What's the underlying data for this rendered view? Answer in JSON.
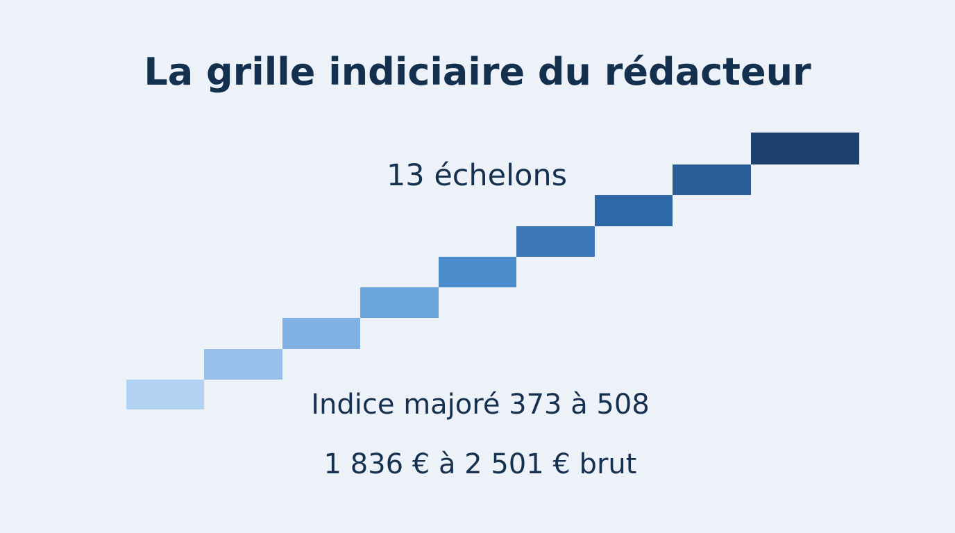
{
  "title": "La grille indiciaire du rédacteur",
  "steps": {
    "count_label": "13 échelons",
    "colors": [
      "#b3d3f3",
      "#98c0ea",
      "#80b1e2",
      "#6aa5dc",
      "#4b8acb",
      "#3b77b6",
      "#2f68a6",
      "#2a5e98",
      "#1d416c"
    ]
  },
  "info": {
    "indice": "Indice majoré 373 à 508",
    "salary": "1 836 € à 2 501 € brut"
  }
}
